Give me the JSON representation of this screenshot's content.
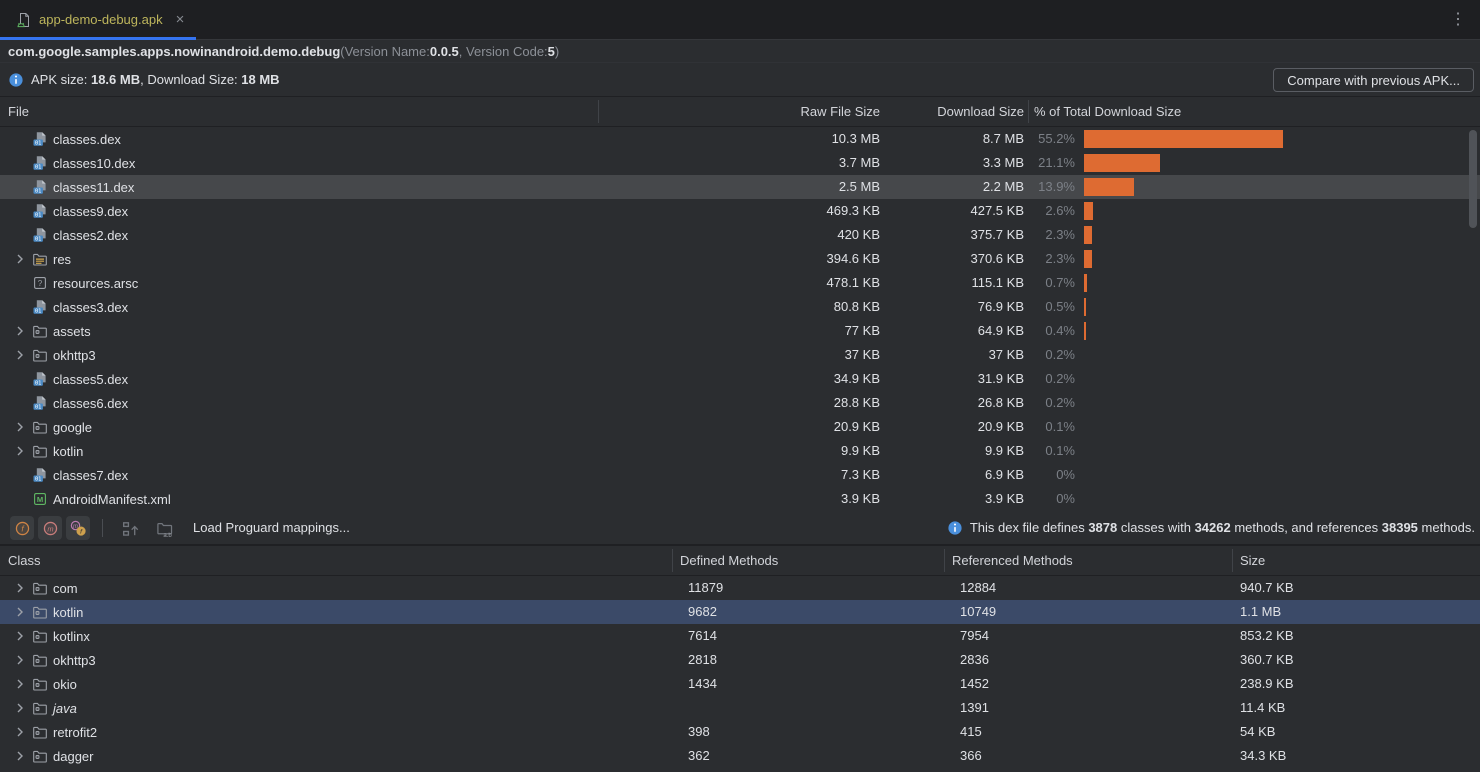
{
  "colors": {
    "accent_bar": "#de6b32",
    "tab_underline": "#3574f0",
    "selection_gray": "#46484b",
    "selection_blue": "#3b4a68",
    "tab_filename": "#bdb55c",
    "info_icon_blue": "#4a8fdb"
  },
  "tab_bar": {
    "tab_title": "app-demo-debug.apk",
    "close_glyph": "×",
    "menu_glyph": "⋮"
  },
  "header": {
    "package": "com.google.samples.apps.nowinandroid.demo.debug",
    "version_prefix": " (Version Name: ",
    "version_name": "0.0.5",
    "version_mid": ", Version Code: ",
    "version_code": "5",
    "version_suffix": ")"
  },
  "apk_line": {
    "label_size": "APK size: ",
    "size_value": "18.6 MB",
    "label_download": ", Download Size: ",
    "download_value": "18 MB",
    "compare_button": "Compare with previous APK..."
  },
  "files_table": {
    "headers": [
      "File",
      "Raw File Size",
      "Download Size",
      "% of Total Download Size"
    ],
    "rows": [
      {
        "name": "classes.dex",
        "icon": "dex-file",
        "expandable": false,
        "selected": false,
        "raw": "10.3 MB",
        "download": "8.7 MB",
        "pct": 55.2,
        "pct_label": "55.2%"
      },
      {
        "name": "classes10.dex",
        "icon": "dex-file",
        "expandable": false,
        "selected": false,
        "raw": "3.7 MB",
        "download": "3.3 MB",
        "pct": 21.1,
        "pct_label": "21.1%"
      },
      {
        "name": "classes11.dex",
        "icon": "dex-file",
        "expandable": false,
        "selected": true,
        "raw": "2.5 MB",
        "download": "2.2 MB",
        "pct": 13.9,
        "pct_label": "13.9%"
      },
      {
        "name": "classes9.dex",
        "icon": "dex-file",
        "expandable": false,
        "selected": false,
        "raw": "469.3 KB",
        "download": "427.5 KB",
        "pct": 2.6,
        "pct_label": "2.6%"
      },
      {
        "name": "classes2.dex",
        "icon": "dex-file",
        "expandable": false,
        "selected": false,
        "raw": "420 KB",
        "download": "375.7 KB",
        "pct": 2.3,
        "pct_label": "2.3%"
      },
      {
        "name": "res",
        "icon": "res-folder",
        "expandable": true,
        "selected": false,
        "raw": "394.6 KB",
        "download": "370.6 KB",
        "pct": 2.3,
        "pct_label": "2.3%"
      },
      {
        "name": "resources.arsc",
        "icon": "arsc-file",
        "expandable": false,
        "selected": false,
        "raw": "478.1 KB",
        "download": "115.1 KB",
        "pct": 0.7,
        "pct_label": "0.7%"
      },
      {
        "name": "classes3.dex",
        "icon": "dex-file",
        "expandable": false,
        "selected": false,
        "raw": "80.8 KB",
        "download": "76.9 KB",
        "pct": 0.5,
        "pct_label": "0.5%"
      },
      {
        "name": "assets",
        "icon": "folder",
        "expandable": true,
        "selected": false,
        "raw": "77 KB",
        "download": "64.9 KB",
        "pct": 0.4,
        "pct_label": "0.4%"
      },
      {
        "name": "okhttp3",
        "icon": "folder",
        "expandable": true,
        "selected": false,
        "raw": "37 KB",
        "download": "37 KB",
        "pct": 0.2,
        "pct_label": "0.2%"
      },
      {
        "name": "classes5.dex",
        "icon": "dex-file",
        "expandable": false,
        "selected": false,
        "raw": "34.9 KB",
        "download": "31.9 KB",
        "pct": 0.2,
        "pct_label": "0.2%"
      },
      {
        "name": "classes6.dex",
        "icon": "dex-file",
        "expandable": false,
        "selected": false,
        "raw": "28.8 KB",
        "download": "26.8 KB",
        "pct": 0.2,
        "pct_label": "0.2%"
      },
      {
        "name": "google",
        "icon": "folder",
        "expandable": true,
        "selected": false,
        "raw": "20.9 KB",
        "download": "20.9 KB",
        "pct": 0.1,
        "pct_label": "0.1%"
      },
      {
        "name": "kotlin",
        "icon": "folder",
        "expandable": true,
        "selected": false,
        "raw": "9.9 KB",
        "download": "9.9 KB",
        "pct": 0.1,
        "pct_label": "0.1%"
      },
      {
        "name": "classes7.dex",
        "icon": "dex-file",
        "expandable": false,
        "selected": false,
        "raw": "7.3 KB",
        "download": "6.9 KB",
        "pct": 0,
        "pct_label": "0%"
      },
      {
        "name": "AndroidManifest.xml",
        "icon": "manifest-file",
        "expandable": false,
        "selected": false,
        "raw": "3.9 KB",
        "download": "3.9 KB",
        "pct": 0,
        "pct_label": "0%"
      }
    ]
  },
  "dex_toolbar": {
    "toggles": [
      "show-fields",
      "show-methods",
      "show-references"
    ],
    "disabled_icons": [
      "expand-to-tree-icon",
      "deobfuscate-names-icon"
    ],
    "load_label": "Load Proguard mappings...",
    "info": {
      "t1": "This dex file defines ",
      "classes_count": "3878",
      "t2": " classes with ",
      "methods_count": "34262",
      "t3": " methods, and references ",
      "references_count": "38395",
      "t4": " methods."
    }
  },
  "classes_table": {
    "headers": [
      "Class",
      "Defined Methods",
      "Referenced Methods",
      "Size"
    ],
    "rows": [
      {
        "name": "com",
        "icon": "package-folder",
        "italic": false,
        "selected": false,
        "defined": "11879",
        "referenced": "12884",
        "size": "940.7 KB"
      },
      {
        "name": "kotlin",
        "icon": "package-folder",
        "italic": false,
        "selected": true,
        "defined": "9682",
        "referenced": "10749",
        "size": "1.1 MB"
      },
      {
        "name": "kotlinx",
        "icon": "package-folder",
        "italic": false,
        "selected": false,
        "defined": "7614",
        "referenced": "7954",
        "size": "853.2 KB"
      },
      {
        "name": "okhttp3",
        "icon": "package-folder",
        "italic": false,
        "selected": false,
        "defined": "2818",
        "referenced": "2836",
        "size": "360.7 KB"
      },
      {
        "name": "okio",
        "icon": "package-folder",
        "italic": false,
        "selected": false,
        "defined": "1434",
        "referenced": "1452",
        "size": "238.9 KB"
      },
      {
        "name": "java",
        "icon": "package-folder",
        "italic": true,
        "selected": false,
        "defined": "",
        "referenced": "1391",
        "size": "11.4 KB"
      },
      {
        "name": "retrofit2",
        "icon": "package-folder",
        "italic": false,
        "selected": false,
        "defined": "398",
        "referenced": "415",
        "size": "54 KB"
      },
      {
        "name": "dagger",
        "icon": "package-folder",
        "italic": false,
        "selected": false,
        "defined": "362",
        "referenced": "366",
        "size": "34.3 KB"
      }
    ]
  }
}
